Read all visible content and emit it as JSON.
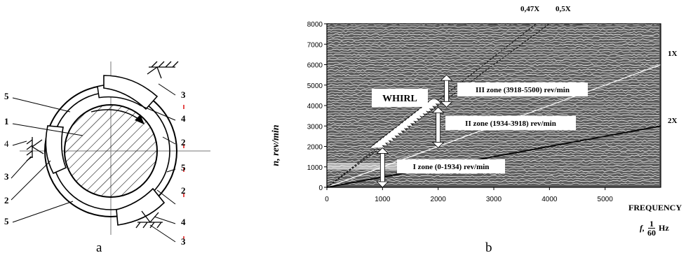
{
  "bearing": {
    "part_labels": [
      "5",
      "1",
      "4",
      "3",
      "2",
      "3",
      "4",
      "2",
      "5",
      "2",
      "3",
      "4",
      "2",
      "5",
      "3"
    ]
  },
  "chart": {
    "ylabel": "n, rev/min",
    "xlabel_line1": "FREQUENCY",
    "xlabel_f": "f,",
    "xlabel_frac_num": "1",
    "xlabel_frac_den": "60",
    "xlabel_unit": "Hz",
    "annotations": {
      "whirl": "WHIRL",
      "zone3": "III zone (3918-5500) rev/min",
      "zone2": "II zone (1934-3918) rev/min",
      "zone1": "I zone (0-1934) rev/min",
      "top_left": "0,47X",
      "top_right": "0,5X",
      "order1": "1X",
      "order2": "2X"
    }
  },
  "captions": {
    "a": "a",
    "b": "b"
  },
  "chart_data": {
    "type": "line",
    "xlabel": "FREQUENCY f, 1/60 Hz",
    "ylabel": "n, rev/min",
    "xlim": [
      0,
      6000
    ],
    "ylim": [
      0,
      8000
    ],
    "x_ticks": [
      "0",
      "1000",
      "2000",
      "3000",
      "4000",
      "5000"
    ],
    "y_ticks": [
      "0",
      "1000",
      "2000",
      "3000",
      "4000",
      "5000",
      "6000",
      "7000",
      "8000"
    ],
    "series": [
      {
        "name": "0,47X",
        "x": [
          0,
          3760
        ],
        "y": [
          0,
          8000
        ]
      },
      {
        "name": "0,5X",
        "x": [
          0,
          4000
        ],
        "y": [
          0,
          8000
        ]
      },
      {
        "name": "1X",
        "x": [
          0,
          6000
        ],
        "y": [
          0,
          6000
        ]
      },
      {
        "name": "2X",
        "x": [
          0,
          6000
        ],
        "y": [
          0,
          3000
        ]
      }
    ],
    "zones": [
      {
        "label": "I zone (0-1934) rev/min",
        "from": 0,
        "to": 1934
      },
      {
        "label": "II zone (1934-3918) rev/min",
        "from": 1934,
        "to": 3918
      },
      {
        "label": "III zone (3918-5500) rev/min",
        "from": 3918,
        "to": 5500
      }
    ]
  }
}
